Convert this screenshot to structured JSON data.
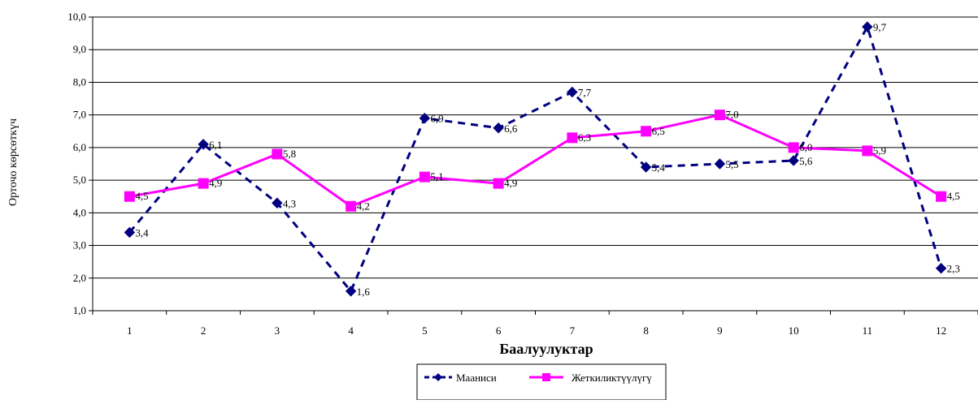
{
  "chart_data": {
    "type": "line",
    "title": "",
    "xlabel": "Баалуулуктар",
    "ylabel": "Орточо көрсөткүч",
    "categories": [
      "1",
      "2",
      "3",
      "4",
      "5",
      "6",
      "7",
      "8",
      "9",
      "10",
      "11",
      "12"
    ],
    "ylim": [
      1.0,
      10.0
    ],
    "yticks": [
      "1,0",
      "2,0",
      "3,0",
      "4,0",
      "5,0",
      "6,0",
      "7,0",
      "8,0",
      "9,0",
      "10,0"
    ],
    "grid": true,
    "legend_position": "bottom",
    "series": [
      {
        "name": "Мааниси",
        "values": [
          3.4,
          6.1,
          4.3,
          1.6,
          6.9,
          6.6,
          7.7,
          5.4,
          5.5,
          5.6,
          9.7,
          2.3
        ],
        "labels": [
          "3,4",
          "6,1",
          "4,3",
          "1,6",
          "6,9",
          "6,6",
          "7,7",
          "5,4",
          "5,5",
          "5,6",
          "9,7",
          "2,3"
        ],
        "color": "#000080",
        "line_style": "dashed",
        "marker": "diamond"
      },
      {
        "name": "Жеткиликтүүлүгү",
        "values": [
          4.5,
          4.9,
          5.8,
          4.2,
          5.1,
          4.9,
          6.3,
          6.5,
          7.0,
          6.0,
          5.9,
          4.5
        ],
        "labels": [
          "4,5",
          "4,9",
          "5,8",
          "4,2",
          "5,1",
          "4,9",
          "6,3",
          "6,5",
          "7,0",
          "6,0",
          "5,9",
          "4,5"
        ],
        "color": "#ff00ff",
        "line_style": "solid",
        "marker": "square"
      }
    ]
  }
}
